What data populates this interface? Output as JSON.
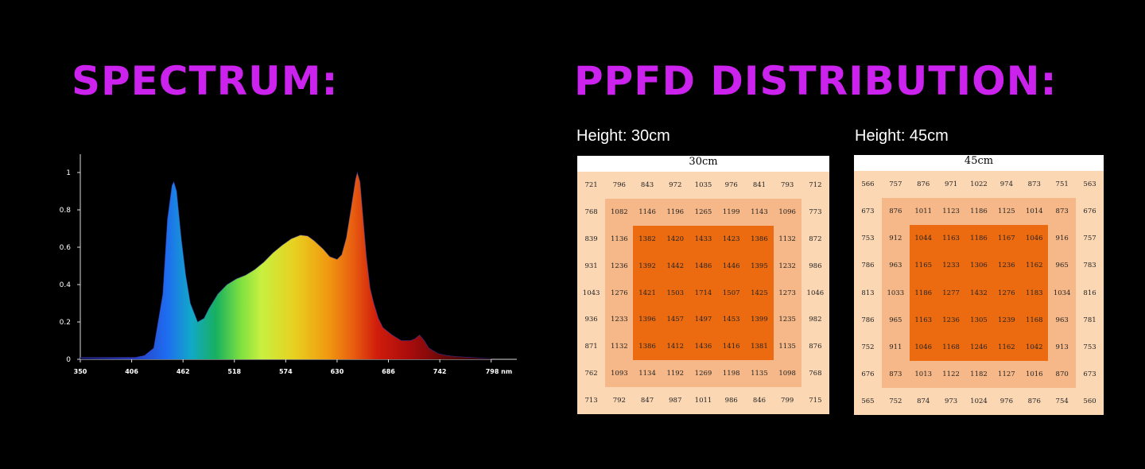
{
  "headings": {
    "spectrum": "SPECTRUM:",
    "ppfd": "PPFD DISTRIBUTION:"
  },
  "colors": {
    "heading": "#cc22ee",
    "background": "#000000",
    "grid_outer": "#fbd7b4",
    "grid_mid": "#f6b888",
    "grid_core": "#ec6b10"
  },
  "chart_data": [
    {
      "type": "area",
      "x_ticks": [
        "350",
        "406",
        "462",
        "518",
        "574",
        "630",
        "686",
        "742",
        "798 nm"
      ],
      "y_ticks": [
        "0",
        "0.2",
        "0.4",
        "0.6",
        "0.8",
        "1"
      ],
      "xlim": [
        350,
        800
      ],
      "ylim": [
        0,
        1
      ],
      "fill": "visible-spectrum gradient",
      "x": [
        350,
        380,
        410,
        420,
        430,
        440,
        445,
        450,
        452,
        455,
        460,
        465,
        470,
        478,
        485,
        490,
        500,
        510,
        520,
        530,
        540,
        550,
        560,
        570,
        580,
        590,
        598,
        605,
        615,
        622,
        630,
        635,
        640,
        645,
        650,
        652,
        655,
        658,
        662,
        666,
        670,
        675,
        680,
        690,
        700,
        710,
        715,
        720,
        725,
        730,
        740,
        750,
        760,
        775,
        790,
        798
      ],
      "values": [
        0.01,
        0.01,
        0.01,
        0.02,
        0.06,
        0.35,
        0.75,
        0.93,
        0.95,
        0.9,
        0.65,
        0.45,
        0.3,
        0.2,
        0.22,
        0.27,
        0.35,
        0.4,
        0.43,
        0.45,
        0.48,
        0.52,
        0.57,
        0.61,
        0.645,
        0.665,
        0.66,
        0.635,
        0.59,
        0.55,
        0.535,
        0.56,
        0.65,
        0.8,
        0.96,
        1.0,
        0.95,
        0.78,
        0.55,
        0.38,
        0.3,
        0.22,
        0.17,
        0.13,
        0.1,
        0.1,
        0.11,
        0.13,
        0.1,
        0.06,
        0.03,
        0.02,
        0.015,
        0.01,
        0.006,
        0.004
      ]
    },
    {
      "type": "heatmap",
      "title": "30cm",
      "rows": [
        [
          "721",
          "796",
          "843",
          "972",
          "1035",
          "976",
          "841",
          "793",
          "712"
        ],
        [
          "768",
          "1082",
          "1146",
          "1196",
          "1265",
          "1199",
          "1143",
          "1096",
          "773"
        ],
        [
          "839",
          "1136",
          "1382",
          "1420",
          "1433",
          "1423",
          "1386",
          "1132",
          "872"
        ],
        [
          "931",
          "1236",
          "1392",
          "1442",
          "1486",
          "1446",
          "1395",
          "1232",
          "986"
        ],
        [
          "1043",
          "1276",
          "1421",
          "1503",
          "1714",
          "1507",
          "1425",
          "1273",
          "1046"
        ],
        [
          "936",
          "1233",
          "1396",
          "1457",
          "1497",
          "1453",
          "1399",
          "1235",
          "982"
        ],
        [
          "871",
          "1132",
          "1386",
          "1412",
          "1436",
          "1416",
          "1381",
          "1135",
          "876"
        ],
        [
          "762",
          "1093",
          "1134",
          "1192",
          "1269",
          "1198",
          "1135",
          "1098",
          "768"
        ],
        [
          "713",
          "792",
          "847",
          "987",
          "1011",
          "986",
          "846",
          "799",
          "715"
        ]
      ]
    },
    {
      "type": "heatmap",
      "title": "45cm",
      "rows": [
        [
          "566",
          "757",
          "876",
          "971",
          "1022",
          "974",
          "873",
          "751",
          "563"
        ],
        [
          "673",
          "876",
          "1011",
          "1123",
          "1186",
          "1125",
          "1014",
          "873",
          "676"
        ],
        [
          "753",
          "912",
          "1044",
          "1163",
          "1186",
          "1167",
          "1046",
          "916",
          "757"
        ],
        [
          "786",
          "963",
          "1165",
          "1233",
          "1306",
          "1236",
          "1162",
          "965",
          "783"
        ],
        [
          "813",
          "1033",
          "1186",
          "1277",
          "1432",
          "1276",
          "1183",
          "1034",
          "816"
        ],
        [
          "786",
          "965",
          "1163",
          "1236",
          "1305",
          "1239",
          "1168",
          "963",
          "781"
        ],
        [
          "752",
          "911",
          "1046",
          "1168",
          "1246",
          "1162",
          "1042",
          "913",
          "753"
        ],
        [
          "676",
          "873",
          "1013",
          "1122",
          "1182",
          "1127",
          "1016",
          "870",
          "673"
        ],
        [
          "565",
          "752",
          "874",
          "973",
          "1024",
          "976",
          "876",
          "754",
          "560"
        ]
      ]
    }
  ],
  "ppfd": {
    "height30_label": "Height: 30cm",
    "height45_label": "Height: 45cm"
  }
}
